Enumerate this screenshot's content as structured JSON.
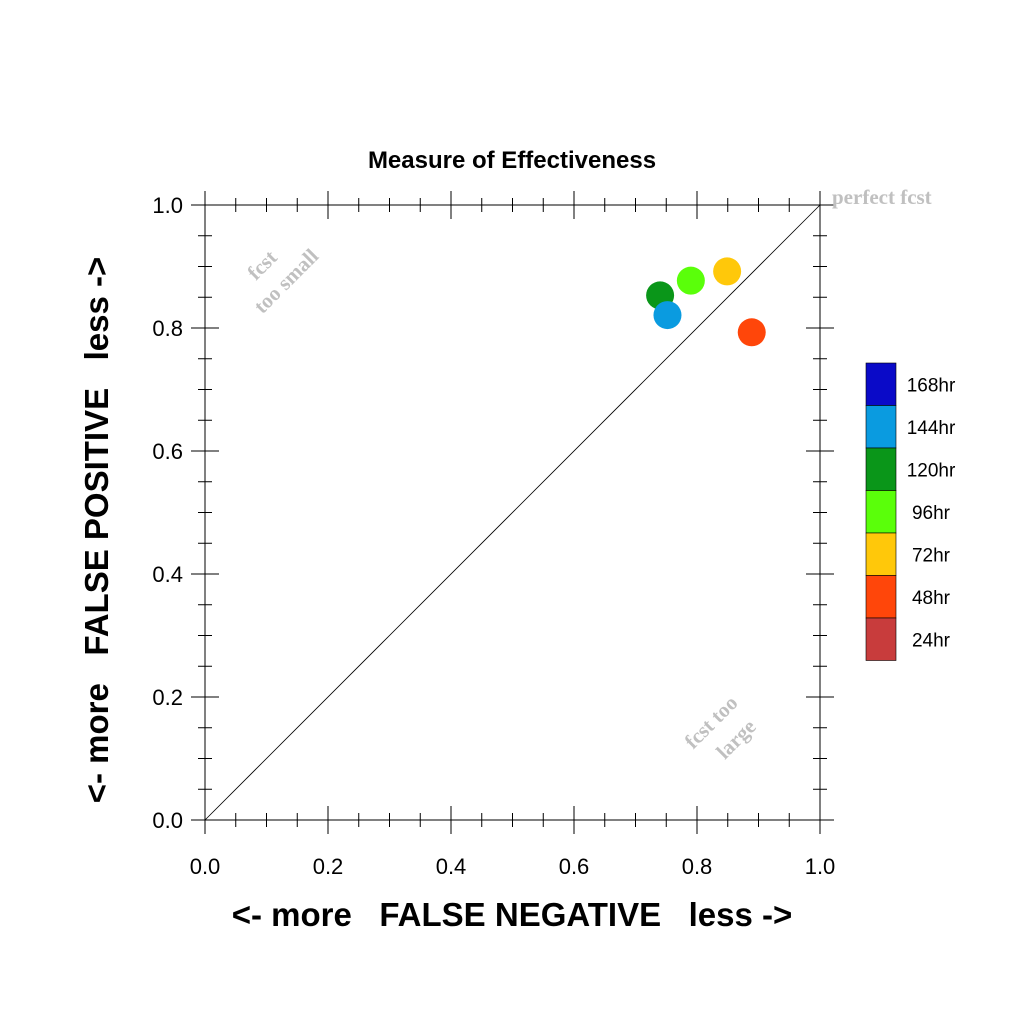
{
  "chart_data": {
    "type": "scatter",
    "title": "Measure of Effectiveness",
    "xlabel": "<- more   FALSE NEGATIVE   less ->",
    "ylabel": "<- more   FALSE POSITIVE   less ->",
    "xlim": [
      0,
      1
    ],
    "ylim": [
      0,
      1
    ],
    "x_ticks": [
      "0.0",
      "0.2",
      "0.4",
      "0.6",
      "0.8",
      "1.0"
    ],
    "y_ticks": [
      "0.0",
      "0.2",
      "0.4",
      "0.6",
      "0.8",
      "1.0"
    ],
    "grid": false,
    "diagonal_reference_line": true,
    "annotations": {
      "top_left": [
        "fcst",
        "too small"
      ],
      "bottom_right": [
        "fcst too",
        "large"
      ],
      "top_right": "perfect fcst"
    },
    "legend": {
      "placement": "right",
      "entries": [
        {
          "label": "168hr",
          "color": "#0a0ac8"
        },
        {
          "label": "144hr",
          "color": "#0a9be0"
        },
        {
          "label": "120hr",
          "color": "#0a9619"
        },
        {
          "label": "96hr",
          "color": "#5aff0a"
        },
        {
          "label": "72hr",
          "color": "#ffc80a"
        },
        {
          "label": "48hr",
          "color": "#ff460a"
        },
        {
          "label": "24hr",
          "color": "#c83c3c"
        }
      ]
    },
    "points": [
      {
        "series": "120hr",
        "x": 0.74,
        "y": 0.853,
        "color": "#0a9619"
      },
      {
        "series": "144hr",
        "x": 0.752,
        "y": 0.821,
        "color": "#0a9be0"
      },
      {
        "series": "96hr",
        "x": 0.79,
        "y": 0.877,
        "color": "#5aff0a"
      },
      {
        "series": "72hr",
        "x": 0.849,
        "y": 0.892,
        "color": "#ffc80a"
      },
      {
        "series": "48hr",
        "x": 0.889,
        "y": 0.793,
        "color": "#ff460a"
      }
    ]
  }
}
